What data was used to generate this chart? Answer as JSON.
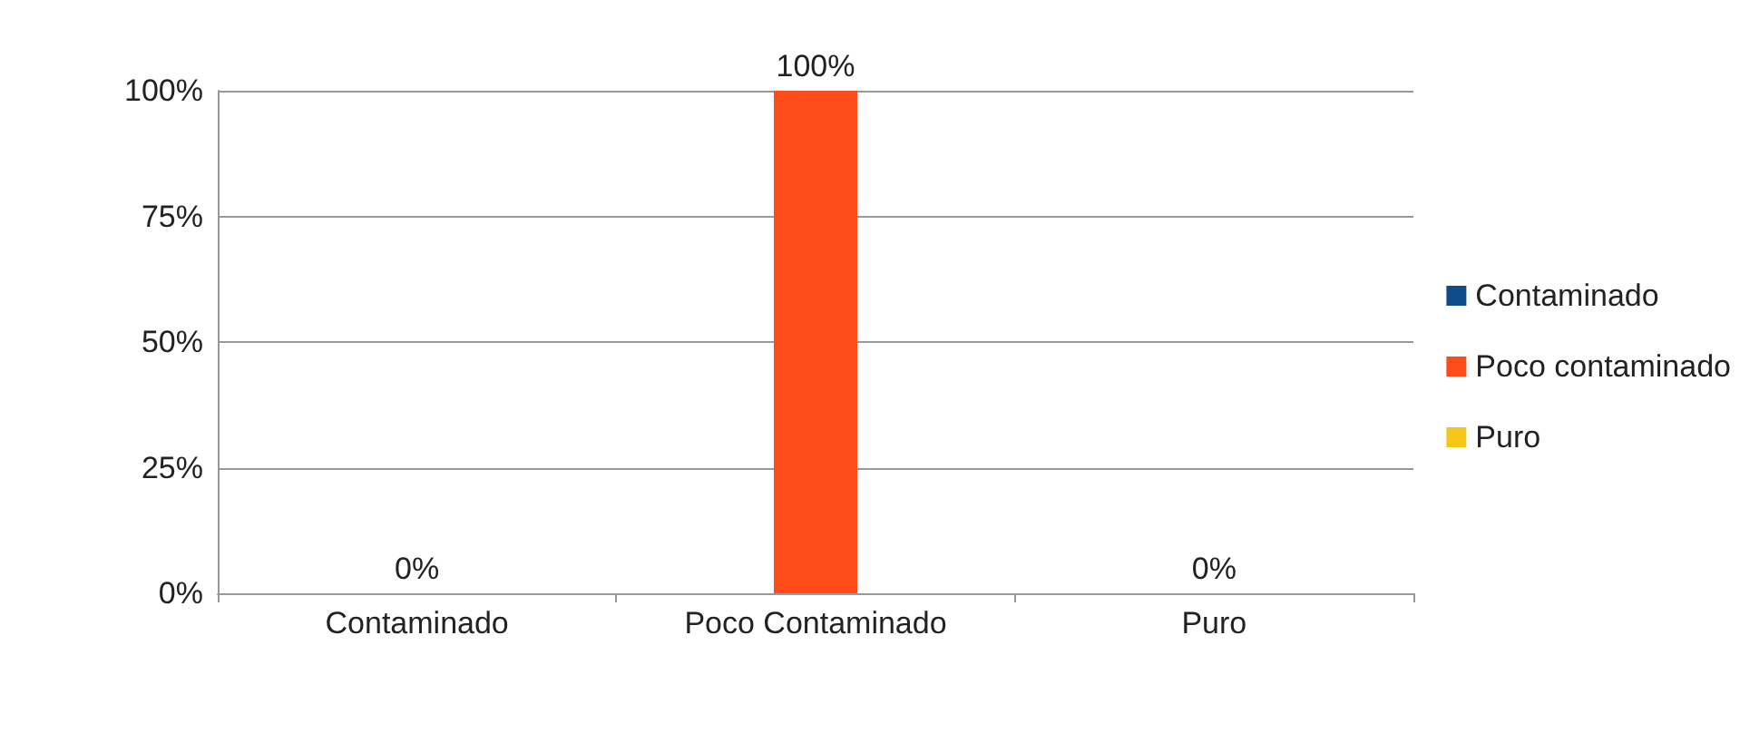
{
  "chart_data": {
    "type": "bar",
    "categories": [
      "Contaminado",
      "Poco Contaminado",
      "Puro"
    ],
    "series": [
      {
        "name": "Contaminado",
        "color": "#0f4c8a",
        "values": [
          0,
          0,
          0
        ]
      },
      {
        "name": "Poco contaminado",
        "color": "#ff4a1a",
        "values": [
          0,
          100,
          0
        ],
        "value_labels": [
          "0%",
          "100%",
          "0%"
        ]
      },
      {
        "name": "Puro",
        "color": "#f5c518",
        "values": [
          0,
          0,
          0
        ]
      }
    ],
    "ylim": [
      0,
      100
    ],
    "yticks": [
      {
        "value": 0,
        "label": "0%"
      },
      {
        "value": 25,
        "label": "25%"
      },
      {
        "value": 50,
        "label": "50%"
      },
      {
        "value": 75,
        "label": "75%"
      },
      {
        "value": 100,
        "label": "100%"
      }
    ],
    "grid": "y",
    "legend": "right"
  }
}
